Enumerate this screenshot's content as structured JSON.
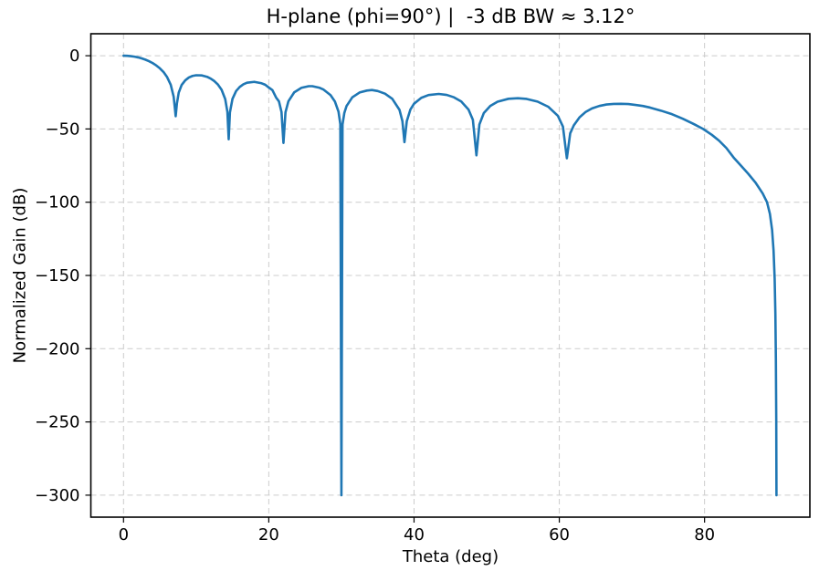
{
  "figure": {
    "title": "H-plane (phi=90°) |  -3 dB BW ≈ 3.12°",
    "xlabel": "Theta (deg)",
    "ylabel": "Normalized Gain (dB)"
  },
  "chart_data": {
    "type": "line",
    "title": "H-plane (phi=90°) |  -3 dB BW ≈ 3.12°",
    "xlabel": "Theta (deg)",
    "ylabel": "Normalized Gain (dB)",
    "xlim": [
      -4.5,
      94.5
    ],
    "ylim": [
      -315,
      15
    ],
    "xticks": [
      0,
      20,
      40,
      60,
      80
    ],
    "xticklabels": [
      "0",
      "20",
      "40",
      "60",
      "80"
    ],
    "yticks": [
      0,
      -50,
      -100,
      -150,
      -200,
      -250,
      -300
    ],
    "yticklabels": [
      "0",
      "−50",
      "−100",
      "−150",
      "−200",
      "−250",
      "−300"
    ],
    "grid": true,
    "grid_style": "dashed",
    "legend": null,
    "line_width": 2.6,
    "colors": {
      "line": "#1f77b4",
      "grid": "#cccccc",
      "axes": "#000000",
      "background": "#ffffff"
    },
    "series": [
      {
        "name": "Normalized gain",
        "x": [
          0,
          0.5,
          1,
          1.5,
          2,
          2.5,
          3,
          3.5,
          4,
          4.5,
          5,
          5.5,
          6,
          6.5,
          6.9,
          7.05,
          7.18,
          7.35,
          7.6,
          8,
          8.5,
          9,
          9.5,
          10,
          10.8,
          11.5,
          12,
          12.5,
          13,
          13.5,
          14,
          14.3,
          14.48,
          14.65,
          15,
          15.5,
          16,
          16.5,
          17,
          18,
          19,
          19.5,
          20,
          20.5,
          21,
          21.4,
          21.75,
          22.02,
          22.3,
          22.7,
          23.5,
          24.5,
          25.5,
          26,
          27,
          27.5,
          28.5,
          29.1,
          29.6,
          29.85,
          30,
          30.15,
          30.4,
          30.7,
          31.5,
          32.5,
          33.5,
          34.2,
          35,
          36,
          37,
          38,
          38.4,
          38.68,
          39,
          39.5,
          40,
          41,
          42,
          43.4,
          44.5,
          45.5,
          46.5,
          47.5,
          48.1,
          48.59,
          49,
          49.6,
          50.5,
          51.5,
          53,
          54.3,
          55.5,
          57,
          58.5,
          59.8,
          60.5,
          61.04,
          61.5,
          62,
          62.8,
          63.6,
          64.5,
          65.5,
          66.5,
          67.5,
          68.5,
          69.5,
          70.5,
          71.5,
          72.5,
          74,
          75.5,
          77,
          78.5,
          79.8,
          81,
          82,
          83,
          84,
          85,
          86,
          87,
          88,
          88.6,
          89,
          89.3,
          89.5,
          89.65,
          89.75,
          89.82,
          89.87,
          89.9
        ],
        "y": [
          0,
          -0.07,
          -0.28,
          -0.64,
          -1.14,
          -1.81,
          -2.67,
          -3.72,
          -5.02,
          -6.61,
          -8.61,
          -11.1,
          -14.6,
          -19.8,
          -27.9,
          -34.9,
          -41.3,
          -32.6,
          -25.2,
          -20.0,
          -16.8,
          -14.85,
          -13.8,
          -13.33,
          -13.46,
          -14.4,
          -15.6,
          -17.3,
          -19.7,
          -23.2,
          -29.6,
          -38.3,
          -57,
          -38.7,
          -29.5,
          -24.1,
          -21.3,
          -19.5,
          -18.45,
          -17.83,
          -18.8,
          -19.8,
          -21.7,
          -23.5,
          -28.5,
          -31.2,
          -38.4,
          -59.5,
          -38.6,
          -31.1,
          -25.0,
          -21.9,
          -20.8,
          -20.8,
          -21.9,
          -23.0,
          -26.9,
          -31.2,
          -38.2,
          -46.8,
          -300,
          -47,
          -39.1,
          -34.4,
          -28.4,
          -25.1,
          -23.8,
          -23.4,
          -24.1,
          -25.9,
          -29.4,
          -37.0,
          -44.7,
          -59,
          -44.7,
          -36.7,
          -32.75,
          -28.75,
          -26.85,
          -26.1,
          -26.75,
          -28.4,
          -31.25,
          -36.75,
          -43.75,
          -68,
          -46.9,
          -39.2,
          -34.3,
          -31.4,
          -29.4,
          -29.0,
          -29.5,
          -31.3,
          -34.9,
          -41.0,
          -48.4,
          -70,
          -53,
          -47.5,
          -42,
          -38.5,
          -36,
          -34.3,
          -33.3,
          -32.9,
          -32.8,
          -33.0,
          -33.6,
          -34.3,
          -35.4,
          -37.5,
          -39.9,
          -43,
          -46.6,
          -50,
          -54,
          -58,
          -63,
          -69.5,
          -75,
          -80.5,
          -86.5,
          -94,
          -100,
          -108,
          -119,
          -133,
          -152,
          -176,
          -208,
          -248,
          -300
        ]
      }
    ]
  }
}
